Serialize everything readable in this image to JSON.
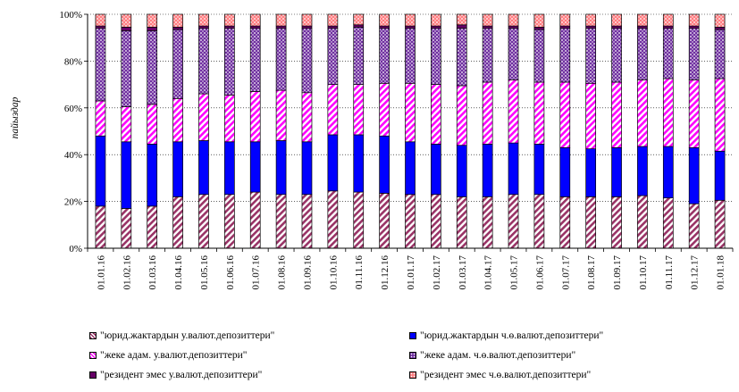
{
  "chart_data": {
    "type": "bar",
    "stacked": true,
    "ylabel": "пайыздар",
    "yticks": [
      "0%",
      "20%",
      "40%",
      "60%",
      "80%",
      "100%"
    ],
    "ylim": [
      0,
      100
    ],
    "grid": "horizontal, dotted",
    "legend_position": "bottom",
    "categories": [
      "01.01.16",
      "01.02.16",
      "01.03.16",
      "01.04.16",
      "01.05.16",
      "01.06.16",
      "01.07.16",
      "01.08.16",
      "01.09.16",
      "01.10.16",
      "01.11.16",
      "01.12.16",
      "01.01.17",
      "01.02.17",
      "01.03.17",
      "01.04.17",
      "01.05.17",
      "01.06.17",
      "01.07.17",
      "01.08.17",
      "01.09.17",
      "01.10.17",
      "01.11.17",
      "01.12.17",
      "01.01.18"
    ],
    "series": [
      {
        "name": "\"юрид.жактардын у.валют.депозиттери\"",
        "color": "#993366",
        "pattern": "diagonal-stripes",
        "values": [
          18,
          17,
          18,
          22,
          23,
          23,
          24,
          23,
          23,
          24.5,
          24,
          23.5,
          23,
          23,
          22,
          22,
          23,
          23,
          22,
          22,
          22,
          22.5,
          21.5,
          19,
          20.5
        ]
      },
      {
        "name": "\"юрид.жактардын ч.ө.валют.депозиттери\"",
        "color": "#0000ff",
        "pattern": "solid",
        "values": [
          30,
          28.5,
          26.5,
          23.5,
          23,
          22.5,
          21.5,
          23,
          22.5,
          24,
          24.5,
          24.5,
          22.5,
          21.5,
          22,
          22.5,
          22,
          21.5,
          21,
          20.5,
          21,
          21,
          22,
          24,
          21
        ]
      },
      {
        "name": "\"жеке адам. у.валют.депозиттери\"",
        "color": "#ff00ff",
        "pattern": "diagonal-stripes",
        "values": [
          15,
          15,
          17,
          18.5,
          20,
          20,
          21.5,
          21.5,
          21,
          21.5,
          21.5,
          22.5,
          25,
          25.5,
          25.5,
          26.5,
          27,
          26.5,
          28,
          28,
          28,
          28.5,
          29,
          29,
          31
        ]
      },
      {
        "name": "\"жеке адам. ч.ө.валют.депозиттери\"",
        "color": "#7030a0",
        "pattern": "dotted",
        "values": [
          31,
          32.5,
          31.5,
          29.5,
          28,
          28.5,
          27,
          26.5,
          27.5,
          24,
          24.5,
          23.5,
          23.5,
          24,
          24.5,
          23,
          22,
          22.5,
          23,
          23.5,
          23,
          22,
          21.5,
          22,
          21
        ]
      },
      {
        "name": "\"резидент эмес у.валют.депозиттери\"",
        "color": "#660066",
        "pattern": "solid",
        "values": [
          1,
          1.5,
          1.5,
          1,
          1,
          1,
          1,
          1,
          1,
          1,
          1,
          1,
          1,
          1,
          1.5,
          1,
          1,
          1,
          1,
          1,
          1,
          1,
          1,
          1,
          1
        ]
      },
      {
        "name": "\"резидент эмес ч.ө.валют.депозиттери\"",
        "color": "#ff7c80",
        "pattern": "dotted",
        "values": [
          5,
          5.5,
          5.5,
          5.5,
          5,
          5,
          5,
          5,
          5,
          5,
          4.5,
          5,
          5,
          5,
          4.5,
          5,
          5,
          5.5,
          5,
          5,
          5,
          5,
          5,
          5,
          5.5
        ]
      }
    ],
    "legend_order": [
      0,
      1,
      2,
      3,
      4,
      5
    ]
  }
}
